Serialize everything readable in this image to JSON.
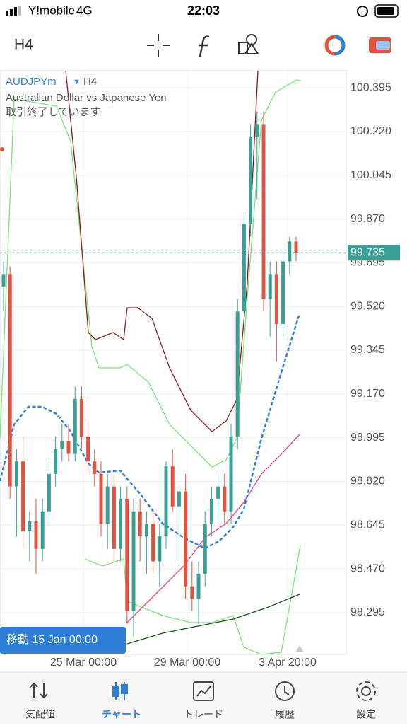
{
  "status_bar": {
    "carrier": "Y!mobile",
    "network": "4G",
    "time": "22:03"
  },
  "toolbar": {
    "timeframe": "H4"
  },
  "chart": {
    "symbol": "AUDJPYm",
    "period": "H4",
    "description": "Australian Dollar vs Japanese Yen",
    "status": "取引終了しています",
    "scroll_label": "移動 15 Jan 00:00",
    "current_price": 99.735,
    "ylim": [
      98.1275,
      100.4635
    ],
    "yticks": [
      100.395,
      {
        "value": 100.22,
        "label": "100.220"
      },
      100.045,
      {
        "value": 99.87,
        "label": "99.870"
      },
      99.695,
      {
        "value": 99.52,
        "label": "99.520"
      },
      99.345,
      {
        "value": 99.17,
        "label": "99.170"
      },
      98.995,
      {
        "value": 98.82,
        "label": "98.820"
      },
      98.645,
      {
        "value": 98.47,
        "label": "98.470"
      },
      98.295
    ],
    "time_labels": [
      "25 Mar 00:00",
      "29 Mar 00:00",
      "3 Apr 20:00"
    ],
    "candles": [
      [
        99.6,
        99.7,
        99.5,
        99.65
      ],
      [
        99.65,
        99.68,
        98.75,
        98.8
      ],
      [
        98.8,
        98.95,
        98.6,
        98.9
      ],
      [
        98.9,
        99.0,
        98.55,
        98.62
      ],
      [
        98.62,
        98.7,
        98.5,
        98.66
      ],
      [
        98.66,
        98.75,
        98.45,
        98.55
      ],
      [
        98.55,
        98.75,
        98.5,
        98.7
      ],
      [
        98.7,
        98.9,
        98.65,
        98.85
      ],
      [
        98.85,
        99.0,
        98.8,
        98.95
      ],
      [
        98.95,
        99.05,
        98.9,
        98.98
      ],
      [
        98.98,
        99.05,
        98.9,
        98.93
      ],
      [
        98.93,
        99.2,
        98.9,
        99.15
      ],
      [
        99.15,
        99.2,
        98.95,
        99.0
      ],
      [
        99.0,
        99.05,
        98.85,
        98.9
      ],
      [
        98.9,
        98.95,
        98.8,
        98.85
      ],
      [
        98.85,
        98.9,
        98.6,
        98.65
      ],
      [
        98.65,
        98.85,
        98.55,
        98.8
      ],
      [
        98.8,
        98.85,
        98.5,
        98.55
      ],
      [
        98.55,
        98.8,
        98.5,
        98.75
      ],
      [
        98.75,
        98.8,
        98.25,
        98.3
      ],
      [
        98.3,
        98.75,
        98.2,
        98.7
      ],
      [
        98.7,
        98.75,
        98.5,
        98.6
      ],
      [
        98.6,
        98.7,
        98.45,
        98.65
      ],
      [
        98.65,
        98.7,
        98.45,
        98.5
      ],
      [
        98.5,
        98.65,
        98.4,
        98.6
      ],
      [
        98.6,
        98.9,
        98.55,
        98.88
      ],
      [
        98.88,
        98.95,
        98.7,
        98.72
      ],
      [
        98.72,
        98.8,
        98.5,
        98.78
      ],
      [
        98.78,
        98.85,
        98.35,
        98.4
      ],
      [
        98.4,
        98.5,
        98.3,
        98.35
      ],
      [
        98.35,
        98.5,
        98.25,
        98.45
      ],
      [
        98.45,
        98.7,
        98.4,
        98.65
      ],
      [
        98.65,
        98.8,
        98.6,
        98.75
      ],
      [
        98.75,
        98.85,
        98.65,
        98.8
      ],
      [
        98.8,
        98.85,
        98.65,
        98.7
      ],
      [
        98.7,
        99.05,
        98.65,
        99.0
      ],
      [
        99.0,
        99.55,
        98.95,
        99.5
      ],
      [
        99.5,
        99.9,
        99.45,
        99.85
      ],
      [
        99.85,
        100.25,
        99.8,
        100.2
      ],
      [
        100.2,
        100.3,
        99.95,
        100.25
      ],
      [
        100.25,
        100.3,
        99.5,
        99.55
      ],
      [
        99.55,
        99.7,
        99.4,
        99.65
      ],
      [
        99.65,
        99.7,
        99.3,
        99.45
      ],
      [
        99.45,
        99.75,
        99.4,
        99.7
      ],
      [
        99.7,
        99.8,
        99.65,
        99.78
      ],
      [
        99.78,
        99.8,
        99.7,
        99.735
      ]
    ]
  },
  "tabs": [
    "気配値",
    "チャート",
    "トレード",
    "履歴",
    "設定"
  ]
}
